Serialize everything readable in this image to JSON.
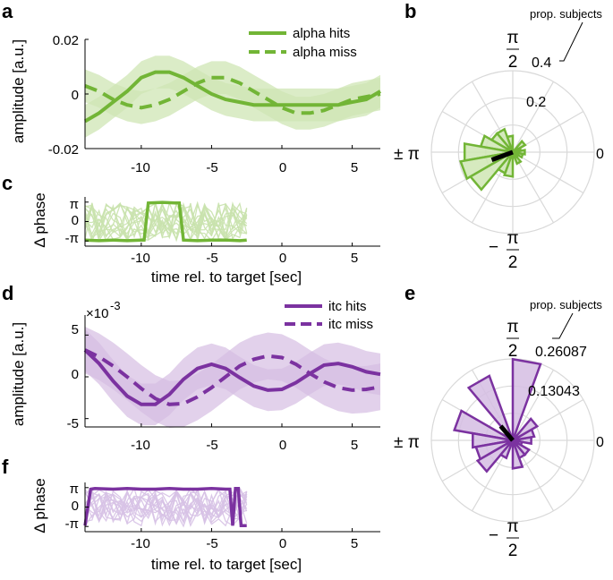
{
  "figure": {
    "letters": [
      "a",
      "b",
      "c",
      "d",
      "e",
      "f"
    ],
    "pi_symbol": "π",
    "pm_pi": "± π",
    "minus_pi": "−",
    "pi_half_num": "π",
    "pi_half_den": "2",
    "zero": "0",
    "minus_pi_tick": "-π",
    "delta_phase": "Δ phase",
    "exp_label": "×10",
    "exp_value": "-3"
  },
  "colors": {
    "green": "#72b536",
    "green_fill": "#cfe6b4",
    "green_light": "#c9e2ad",
    "purple": "#7b32a0",
    "purple_fill": "#d5bde3",
    "purple_light": "#d7c2e6",
    "grey_grid": "#d9d9d9"
  },
  "chart_data": [
    {
      "id": "a",
      "type": "line",
      "ylabel": "amplitude [a.u.]",
      "xlabel": "",
      "xlim": [
        -14,
        7
      ],
      "ylim": [
        -0.02,
        0.02
      ],
      "yticks": [
        -0.02,
        0,
        0.02
      ],
      "ytick_labels": [
        "-0.02",
        "0",
        "0.02"
      ],
      "xticks": [
        -10,
        -5,
        0,
        5
      ],
      "xtick_labels": [
        "-10",
        "-5",
        "0",
        "5"
      ],
      "legend_position": "top-right",
      "series": [
        {
          "name": "alpha hits",
          "style": "solid",
          "x": [
            -14,
            -13,
            -12,
            -11,
            -10,
            -9,
            -8,
            -7,
            -6,
            -5,
            -4,
            -3,
            -2,
            -1,
            0,
            1,
            2,
            3,
            4,
            5,
            6,
            7
          ],
          "y": [
            -0.01,
            -0.007,
            -0.003,
            0.001,
            0.006,
            0.008,
            0.008,
            0.006,
            0.003,
            0.0,
            -0.002,
            -0.003,
            -0.004,
            -0.004,
            -0.004,
            -0.004,
            -0.004,
            -0.004,
            -0.004,
            -0.003,
            -0.002,
            0.001
          ],
          "band": 0.006
        },
        {
          "name": "alpha miss",
          "style": "dashed",
          "x": [
            -14,
            -13,
            -12,
            -11,
            -10,
            -9,
            -8,
            -7,
            -6,
            -5,
            -4,
            -3,
            -2,
            -1,
            0,
            1,
            2,
            3,
            4,
            5,
            6,
            7
          ],
          "y": [
            0.003,
            0.001,
            -0.002,
            -0.004,
            -0.005,
            -0.004,
            -0.002,
            0.001,
            0.004,
            0.006,
            0.006,
            0.004,
            0.001,
            -0.002,
            -0.005,
            -0.007,
            -0.007,
            -0.006,
            -0.004,
            -0.002,
            -0.001,
            0.0
          ],
          "band": 0.006
        }
      ]
    },
    {
      "id": "b",
      "type": "polar-histogram",
      "annotation": "prop. subjects",
      "rtick_labels": [
        "0.2",
        "0.4"
      ],
      "rmax": 0.4,
      "angle_labels": [
        "0",
        "π/2",
        "± π",
        "−π/2"
      ],
      "bins_deg_center": [
        0,
        20,
        40,
        60,
        80,
        100,
        120,
        140,
        160,
        180,
        200,
        220,
        240,
        260,
        280,
        300,
        320,
        340
      ],
      "values": [
        0.06,
        0.04,
        0.07,
        0.0,
        0.0,
        0.08,
        0.12,
        0.12,
        0.16,
        0.24,
        0.26,
        0.24,
        0.11,
        0.12,
        0.0,
        0.06,
        0.03,
        0.05
      ],
      "mean_angle_deg": 200,
      "mean_length": 0.11
    },
    {
      "id": "c",
      "type": "line",
      "ylabel": "Δ phase",
      "xlabel": "time rel. to target [sec]",
      "xlim": [
        -14,
        7
      ],
      "ylim": [
        -3.4,
        3.4
      ],
      "ytick_labels": [
        "π",
        "0",
        "-π"
      ],
      "xtick_labels": [
        "-10",
        "-5",
        "0",
        "5"
      ],
      "highlight": {
        "x": [
          -14,
          -13,
          -12,
          -11,
          -10,
          -9.8,
          -9.5,
          -8.5,
          -7.6,
          -7.3,
          -7,
          -6,
          -5,
          -4,
          -3,
          -2.5
        ],
        "y": [
          -3.0,
          -3.1,
          -3.0,
          -3.1,
          -3.0,
          -3.0,
          3.0,
          3.1,
          3.0,
          3.0,
          -3.0,
          -3.1,
          -3.0,
          -3.0,
          -3.1,
          -3.0
        ]
      },
      "background_traces": 14
    },
    {
      "id": "d",
      "type": "line",
      "ylabel": "amplitude [a.u.]",
      "xlabel": "",
      "xlim": [
        -14,
        7
      ],
      "ylim": [
        -6,
        6
      ],
      "yticks": [
        -5,
        0,
        5
      ],
      "ytick_labels": [
        "-5",
        "0",
        "5"
      ],
      "xtick_labels": [
        "-10",
        "-5",
        "0",
        "5"
      ],
      "legend_position": "top-right",
      "series": [
        {
          "name": "itc hits",
          "style": "solid",
          "x": [
            -14,
            -13,
            -12,
            -11,
            -10,
            -9,
            -8,
            -7,
            -6,
            -5,
            -4,
            -3,
            -2,
            -1,
            0,
            1,
            2,
            3,
            4,
            5,
            6,
            7
          ],
          "y": [
            3.2,
            1.6,
            -0.5,
            -2.3,
            -3.3,
            -3.3,
            -2.1,
            -0.3,
            1.0,
            1.5,
            1.0,
            -0.1,
            -1.1,
            -1.6,
            -1.5,
            -0.7,
            0.4,
            1.4,
            1.6,
            1.2,
            0.6,
            0.3
          ],
          "band": 2.5
        },
        {
          "name": "itc miss",
          "style": "dashed",
          "x": [
            -14,
            -13,
            -12,
            -11,
            -10,
            -9,
            -8,
            -7,
            -6,
            -5,
            -4,
            -3,
            -2,
            -1,
            0,
            1,
            2,
            3,
            4,
            5,
            6,
            7
          ],
          "y": [
            3.2,
            2.4,
            1.3,
            0.0,
            -1.4,
            -2.6,
            -3.3,
            -3.2,
            -2.4,
            -1.3,
            0.0,
            1.3,
            2.1,
            2.5,
            2.3,
            1.5,
            0.4,
            -0.6,
            -1.3,
            -1.6,
            -1.5,
            -1.2
          ],
          "band": 2.8
        }
      ]
    },
    {
      "id": "e",
      "type": "polar-histogram",
      "annotation": "prop. subjects",
      "rtick_labels": [
        "0.13043",
        "0.26087"
      ],
      "rmax": 0.26087,
      "angle_labels": [
        "0",
        "π/2",
        "± π",
        "−π/2"
      ],
      "bins_deg_center": [
        0,
        20,
        40,
        60,
        80,
        100,
        120,
        140,
        160,
        180,
        200,
        220,
        240,
        260,
        280,
        300,
        320,
        340
      ],
      "values": [
        0.06,
        0.07,
        0.09,
        0.0,
        0.26,
        0.0,
        0.22,
        0.0,
        0.19,
        0.13,
        0.12,
        0.13,
        0.06,
        0.0,
        0.09,
        0.06,
        0.06,
        0.03
      ],
      "mean_angle_deg": 130,
      "mean_length": 0.06
    },
    {
      "id": "f",
      "type": "line",
      "ylabel": "Δ phase",
      "xlabel": "time rel. to target [sec]",
      "xlim": [
        -14,
        7
      ],
      "ylim": [
        -3.4,
        3.4
      ],
      "ytick_labels": [
        "π",
        "0",
        "-π"
      ],
      "xtick_labels": [
        "-10",
        "-5",
        "0",
        "5"
      ],
      "highlight": {
        "x": [
          -14,
          -13.6,
          -13.3,
          -12,
          -11,
          -10,
          -9,
          -8,
          -7,
          -6,
          -5,
          -4,
          -3.7,
          -3.5,
          -3.3,
          -3.1,
          -2.9,
          -2.7,
          -2.5
        ],
        "y": [
          -3.0,
          2.9,
          3.0,
          2.9,
          3.0,
          2.9,
          2.9,
          3.0,
          2.9,
          2.9,
          3.0,
          2.9,
          2.9,
          -3.0,
          3.0,
          3.0,
          -3.0,
          -3.0,
          -3.0
        ]
      },
      "background_traces": 14
    }
  ]
}
